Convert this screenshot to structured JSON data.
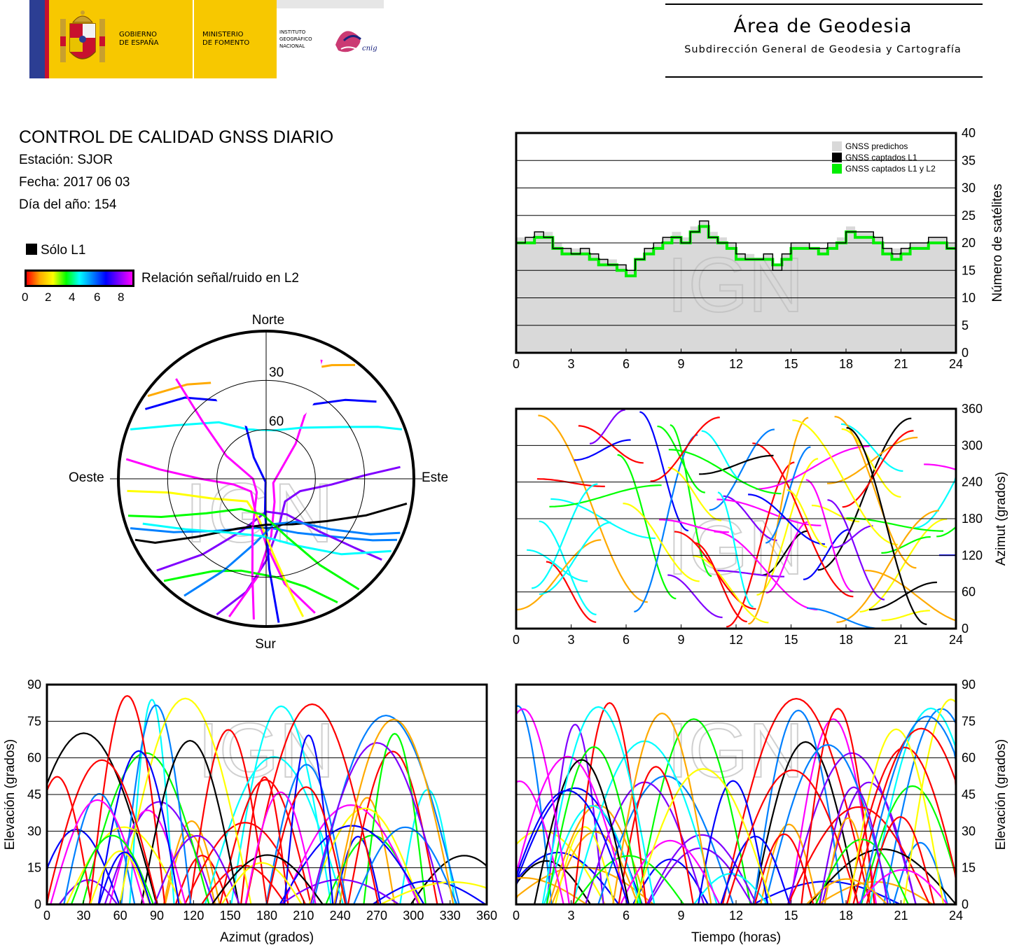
{
  "header": {
    "logo_gov_line1": "GOBIERNO",
    "logo_gov_line2": "DE ESPAÑA",
    "logo_min_line1": "MINISTERIO",
    "logo_min_line2": "DE FOMENTO",
    "logo_ign_line1": "INSTITUTO",
    "logo_ign_line2": "GEOGRÁFICO",
    "logo_ign_line3": "NACIONAL",
    "logo_cnig": "cnig",
    "area_title": "Área de Geodesia",
    "area_subtitle": "Subdirección General de Geodesia y Cartografía"
  },
  "info": {
    "title": "CONTROL DE CALIDAD GNSS DIARIO",
    "station": "Estación: SJOR",
    "date": "Fecha: 2017 06 03",
    "doy": "Día del año: 154"
  },
  "legend": {
    "solo_l1": "Sólo L1",
    "snr_label": "Relación señal/ruido en L2",
    "snr_ticks": [
      "0",
      "2",
      "4",
      "6",
      "8"
    ]
  },
  "colors": {
    "predicted": "#d9d9d9",
    "l1": "#000000",
    "l1l2": "#00ee00",
    "snr_gradient": [
      "#ff0000",
      "#ffaa00",
      "#ffff00",
      "#00ff00",
      "#00ffff",
      "#0080ff",
      "#0000ff",
      "#8000ff",
      "#ff00ff"
    ],
    "grid": "#000000",
    "frame": "#000000"
  },
  "watermark": "IGN",
  "chart_data": [
    {
      "type": "line",
      "id": "sat_count",
      "xlabel": "",
      "ylabel": "Número de satélites",
      "xlim": [
        0,
        24
      ],
      "ylim": [
        0,
        40
      ],
      "xticks": [
        "0",
        "3",
        "6",
        "9",
        "12",
        "15",
        "18",
        "21",
        "24"
      ],
      "yticks": [
        "0",
        "5",
        "10",
        "15",
        "20",
        "25",
        "30",
        "35",
        "40"
      ],
      "legend": [
        "GNSS predichos",
        "GNSS captados L1",
        "GNSS captados L1 y L2"
      ],
      "legend_position": "top-right",
      "x": [
        0,
        0.5,
        1,
        1.5,
        2,
        2.5,
        3,
        3.5,
        4,
        4.5,
        5,
        5.5,
        6,
        6.5,
        7,
        7.5,
        8,
        8.5,
        9,
        9.5,
        10,
        10.5,
        11,
        11.5,
        12,
        12.5,
        13,
        13.5,
        14,
        14.5,
        15,
        15.5,
        16,
        16.5,
        17,
        17.5,
        18,
        18.5,
        19,
        19.5,
        20,
        20.5,
        21,
        21.5,
        22,
        22.5,
        23,
        23.5,
        24
      ],
      "series": [
        {
          "name": "GNSS predichos",
          "values": [
            21,
            21,
            22,
            22,
            20,
            19,
            19,
            19,
            18,
            17,
            17,
            16,
            15,
            17,
            19,
            20,
            21,
            22,
            21,
            23,
            24,
            22,
            21,
            20,
            18,
            18,
            17,
            18,
            16,
            18,
            20,
            20,
            19,
            19,
            20,
            21,
            23,
            22,
            22,
            21,
            19,
            19,
            19,
            20,
            20,
            21,
            21,
            20,
            20
          ]
        },
        {
          "name": "GNSS captados L1",
          "values": [
            20,
            21,
            22,
            21,
            19,
            19,
            18,
            19,
            18,
            17,
            16,
            16,
            15,
            17,
            19,
            20,
            21,
            21,
            20,
            22,
            24,
            21,
            20,
            20,
            18,
            17,
            17,
            18,
            15,
            18,
            20,
            20,
            19,
            19,
            20,
            20,
            22,
            22,
            22,
            21,
            19,
            18,
            19,
            20,
            20,
            21,
            21,
            19,
            20
          ]
        },
        {
          "name": "GNSS captados L1 y L2",
          "values": [
            20,
            20,
            21,
            21,
            19,
            18,
            18,
            18,
            17,
            16,
            16,
            15,
            14,
            17,
            18,
            19,
            20,
            21,
            20,
            22,
            23,
            21,
            20,
            19,
            17,
            17,
            17,
            17,
            16,
            17,
            19,
            19,
            19,
            18,
            19,
            20,
            22,
            21,
            21,
            20,
            18,
            17,
            18,
            19,
            19,
            20,
            20,
            19,
            19
          ]
        }
      ],
      "grid": true
    },
    {
      "type": "scatter",
      "id": "skyplot",
      "title": "",
      "directions": {
        "north": "Norte",
        "south": "Sur",
        "east": "Este",
        "west": "Oeste"
      },
      "ring_labels": [
        "30",
        "60"
      ],
      "description_of_marks": "satellite tracks colored by L2 SNR",
      "tracks": [
        {
          "points": [
            [
              300,
              5
            ],
            [
              315,
              20
            ],
            [
              330,
              35
            ],
            [
              345,
              48
            ],
            [
              0,
              55
            ],
            [
              15,
              50
            ],
            [
              30,
              38
            ],
            [
              45,
              22
            ],
            [
              55,
              8
            ]
          ],
          "snr": 6
        },
        {
          "points": [
            [
              200,
              2
            ],
            [
              190,
              20
            ],
            [
              180,
              40
            ],
            [
              165,
              60
            ],
            [
              140,
              72
            ],
            [
              110,
              68
            ],
            [
              95,
              50
            ],
            [
              88,
              30
            ],
            [
              85,
              8
            ]
          ],
          "snr": 7
        },
        {
          "points": [
            [
              160,
              3
            ],
            [
              170,
              25
            ],
            [
              180,
              50
            ],
            [
              200,
              70
            ],
            [
              230,
              78
            ],
            [
              260,
              70
            ],
            [
              270,
              50
            ],
            [
              275,
              25
            ],
            [
              278,
              4
            ]
          ],
          "snr": 8
        },
        {
          "points": [
            [
              250,
              2
            ],
            [
              240,
              25
            ],
            [
              225,
              45
            ],
            [
              200,
              58
            ],
            [
              175,
              60
            ],
            [
              150,
              52
            ],
            [
              130,
              35
            ],
            [
              120,
              15
            ],
            [
              115,
              2
            ]
          ],
          "snr": 5
        },
        {
          "points": [
            [
              195,
              3
            ],
            [
              185,
              30
            ],
            [
              175,
              55
            ],
            [
              160,
              75
            ],
            [
              120,
              85
            ],
            [
              60,
              80
            ],
            [
              40,
              62
            ],
            [
              30,
              40
            ],
            [
              25,
              10
            ]
          ],
          "snr": 8
        },
        {
          "points": [
            [
              290,
              2
            ],
            [
              300,
              25
            ],
            [
              320,
              45
            ],
            [
              340,
              58
            ],
            [
              10,
              60
            ],
            [
              35,
              52
            ],
            [
              55,
              35
            ],
            [
              65,
              15
            ],
            [
              70,
              2
            ]
          ],
          "snr": 4
        },
        {
          "points": [
            [
              150,
              3
            ],
            [
              160,
              20
            ],
            [
              175,
              30
            ],
            [
              195,
              32
            ],
            [
              210,
              25
            ],
            [
              220,
              12
            ],
            [
              225,
              2
            ]
          ],
          "snr": 3
        },
        {
          "points": [
            [
              230,
              3
            ],
            [
              220,
              30
            ],
            [
              205,
              55
            ],
            [
              180,
              70
            ],
            [
              150,
              65
            ],
            [
              135,
              45
            ],
            [
              128,
              22
            ],
            [
              125,
              4
            ]
          ],
          "snr": 7
        },
        {
          "points": [
            [
              175,
              2
            ],
            [
              178,
              35
            ],
            [
              182,
              70
            ],
            [
              190,
              88
            ],
            [
              330,
              75
            ],
            [
              340,
              50
            ],
            [
              345,
              25
            ],
            [
              348,
              3
            ]
          ],
          "snr": 6
        },
        {
          "points": [
            [
              265,
              5
            ],
            [
              262,
              30
            ],
            [
              250,
              55
            ],
            [
              220,
              72
            ],
            [
              190,
              65
            ],
            [
              175,
              45
            ],
            [
              168,
              20
            ],
            [
              165,
              3
            ]
          ],
          "snr": 2
        },
        {
          "points": [
            [
              100,
              3
            ],
            [
              110,
              25
            ],
            [
              125,
              45
            ],
            [
              150,
              58
            ],
            [
              180,
              62
            ],
            [
              210,
              55
            ],
            [
              230,
              35
            ],
            [
              240,
              12
            ],
            [
              245,
              2
            ]
          ],
          "snr": 0,
          "l1only": true
        },
        {
          "points": [
            [
              305,
              2
            ],
            [
              320,
              15
            ],
            [
              335,
              25
            ],
            [
              355,
              28
            ],
            [
              15,
              22
            ],
            [
              30,
              10
            ],
            [
              38,
              2
            ]
          ],
          "snr": 1
        },
        {
          "points": [
            [
              215,
              3
            ],
            [
              205,
              28
            ],
            [
              190,
              50
            ],
            [
              170,
              62
            ],
            [
              145,
              58
            ],
            [
              128,
              40
            ],
            [
              118,
              18
            ],
            [
              112,
              2
            ]
          ],
          "snr": 5
        },
        {
          "points": [
            [
              120,
              2
            ],
            [
              135,
              25
            ],
            [
              155,
              45
            ],
            [
              185,
              55
            ],
            [
              215,
              50
            ],
            [
              238,
              32
            ],
            [
              250,
              10
            ]
          ],
          "snr": 4
        },
        {
          "points": [
            [
              185,
              4
            ],
            [
              188,
              30
            ],
            [
              195,
              58
            ],
            [
              215,
              80
            ],
            [
              270,
              82
            ],
            [
              300,
              62
            ],
            [
              312,
              38
            ],
            [
              318,
              8
            ]
          ],
          "snr": 8
        },
        {
          "points": [
            [
              140,
              2
            ],
            [
              148,
              28
            ],
            [
              160,
              52
            ],
            [
              185,
              68
            ],
            [
              220,
              66
            ],
            [
              240,
              48
            ],
            [
              250,
              22
            ],
            [
              255,
              3
            ]
          ],
          "snr": 3
        }
      ]
    },
    {
      "type": "scatter",
      "id": "azimuth_time",
      "xlabel": "",
      "ylabel": "Azimut (grados)",
      "xlim": [
        0,
        24
      ],
      "ylim": [
        0,
        360
      ],
      "xticks": [
        "0",
        "3",
        "6",
        "9",
        "12",
        "15",
        "18",
        "21",
        "24"
      ],
      "yticks": [
        "0",
        "60",
        "120",
        "180",
        "240",
        "300",
        "360"
      ],
      "grid": true
    },
    {
      "type": "scatter",
      "id": "elev_azimuth",
      "xlabel": "Azimut (grados)",
      "ylabel": "Elevación (grados)",
      "xlim": [
        0,
        360
      ],
      "ylim": [
        0,
        90
      ],
      "xticks": [
        "0",
        "30",
        "60",
        "90",
        "120",
        "150",
        "180",
        "210",
        "240",
        "270",
        "300",
        "330",
        "360"
      ],
      "yticks": [
        "0",
        "15",
        "30",
        "45",
        "60",
        "75",
        "90"
      ],
      "grid": true
    },
    {
      "type": "scatter",
      "id": "elev_time",
      "xlabel": "Tiempo (horas)",
      "ylabel": "Elevación (grados)",
      "xlim": [
        0,
        24
      ],
      "ylim": [
        0,
        90
      ],
      "xticks": [
        "0",
        "3",
        "6",
        "9",
        "12",
        "15",
        "18",
        "21",
        "24"
      ],
      "yticks": [
        "0",
        "15",
        "30",
        "45",
        "60",
        "75",
        "90"
      ],
      "grid": true
    }
  ]
}
